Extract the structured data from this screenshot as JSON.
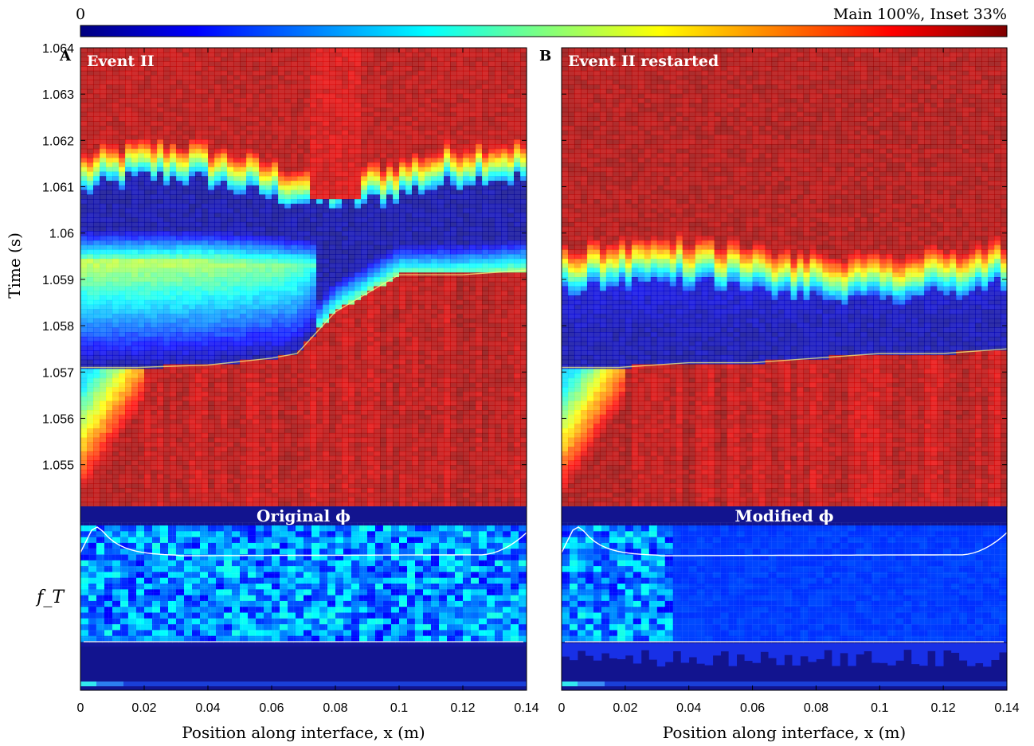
{
  "colorbar": {
    "min_label": "0",
    "max_label": "Main 100%, Inset 33%",
    "stops": [
      "#00007f",
      "#0000ff",
      "#007fff",
      "#00ffff",
      "#7fff7f",
      "#ffff00",
      "#ff7f00",
      "#ff0000",
      "#7f0000"
    ]
  },
  "chart_data": [
    {
      "type": "heatmap",
      "panel_letter": "A",
      "label": "Event II",
      "inset_label": "Original ϕ",
      "xlabel": "Position along interface, x (m)",
      "ylabel": "Time (s)",
      "xlim": [
        0,
        0.14
      ],
      "ylim": [
        1.0541,
        1.064
      ],
      "x_ticks": [
        "0",
        "0.02",
        "0.04",
        "0.06",
        "0.08",
        "0.1",
        "0.12",
        "0.14"
      ],
      "y_ticks": [
        "1.055",
        "1.056",
        "1.057",
        "1.058",
        "1.059",
        "1.06",
        "1.061",
        "1.062",
        "1.063",
        "1.064"
      ],
      "inset_ylabel": "f_T",
      "rupture_fronts": [
        {
          "name": "first front",
          "x": [
            0,
            0.018,
            0.04,
            0.06,
            0.068,
            0.072,
            0.08,
            0.095,
            0.1,
            0.12,
            0.14
          ],
          "t": [
            1.0571,
            1.0571,
            1.05715,
            1.0573,
            1.0574,
            1.0577,
            1.0583,
            1.0589,
            1.0591,
            1.0591,
            1.0592
          ]
        },
        {
          "name": "second front",
          "x": [
            0,
            0.02,
            0.04,
            0.06,
            0.074
          ],
          "t": [
            1.0594,
            1.0594,
            1.0594,
            1.0593,
            1.0592
          ]
        }
      ]
    },
    {
      "type": "heatmap",
      "panel_letter": "B",
      "label": "Event II restarted",
      "inset_label": "Modified ϕ",
      "xlabel": "Position along interface, x (m)",
      "ylabel": "",
      "xlim": [
        0,
        0.14
      ],
      "ylim": [
        1.0541,
        1.064
      ],
      "x_ticks": [
        "0",
        "0.02",
        "0.04",
        "0.06",
        "0.08",
        "0.1",
        "0.12",
        "0.14"
      ],
      "y_ticks": [],
      "inset_ylabel": "",
      "rupture_fronts": [
        {
          "name": "first front",
          "x": [
            0,
            0.018,
            0.04,
            0.06,
            0.08,
            0.1,
            0.12,
            0.14
          ],
          "t": [
            1.0571,
            1.0571,
            1.0572,
            1.0572,
            1.0573,
            1.0574,
            1.0574,
            1.0575
          ]
        }
      ]
    }
  ]
}
